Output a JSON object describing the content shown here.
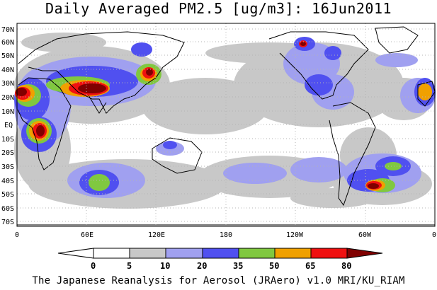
{
  "title": "Daily Averaged PM2.5 [ug/m3]: 16Jun2011",
  "footer": "The Japanese Reanalysis for Aerosol (JRAero) v1.0 MRI/KU_RIAM",
  "lat_labels": [
    "70N",
    "60N",
    "50N",
    "40N",
    "30N",
    "20N",
    "10N",
    "EQ",
    "10S",
    "20S",
    "30S",
    "40S",
    "50S",
    "60S",
    "70S"
  ],
  "lon_labels": [
    "0",
    "60E",
    "120E",
    "180",
    "120W",
    "60W",
    "0"
  ],
  "colorbar": {
    "levels": [
      "0",
      "5",
      "10",
      "20",
      "35",
      "50",
      "65",
      "80"
    ],
    "colors": [
      "#ffffff",
      "#c8c8c8",
      "#a0a0f0",
      "#5050f0",
      "#80c840",
      "#f0a000",
      "#f01010",
      "#800000"
    ]
  },
  "legend_colors": {
    "land_outline": "#000000",
    "grid": "#b4b4b4"
  }
}
